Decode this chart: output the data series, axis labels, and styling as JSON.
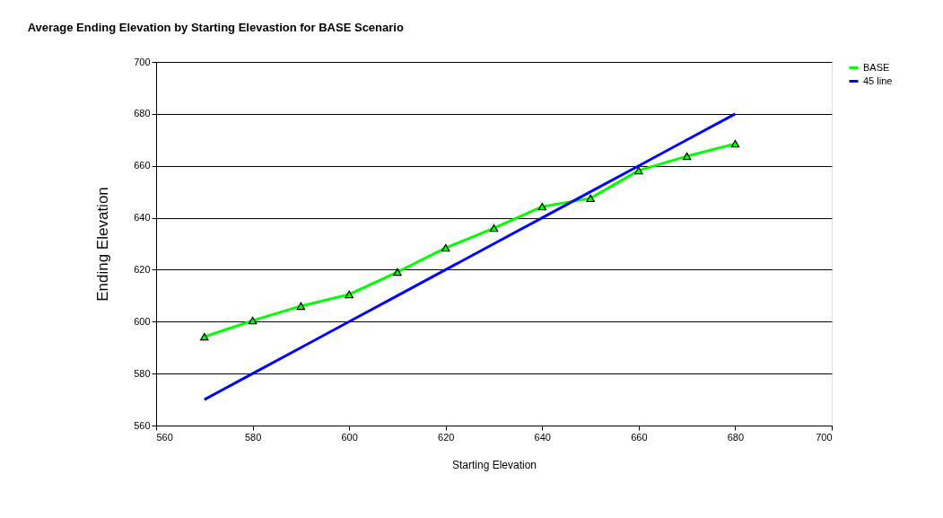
{
  "chart_data": {
    "type": "line",
    "title": "Average Ending Elevation by Starting Elevastion for BASE Scenario",
    "xlabel": "Starting Elevation",
    "ylabel": "Ending Elevation",
    "x": [
      570,
      580,
      590,
      600,
      610,
      620,
      630,
      640,
      650,
      660,
      670,
      680
    ],
    "series": [
      {
        "name": "BASE",
        "color": "#00ff00",
        "marker": "triangle",
        "values": [
          594.2,
          600.4,
          606,
          610.5,
          619.1,
          628.4,
          636,
          644.3,
          647.5,
          658.2,
          663.7,
          668.5
        ]
      },
      {
        "name": "45 line",
        "color": "#0000ff",
        "marker": "none",
        "values": [
          570,
          580,
          590,
          600,
          610,
          620,
          630,
          640,
          650,
          660,
          670,
          680
        ]
      }
    ],
    "xlim": [
      560,
      700
    ],
    "xticks": [
      560,
      580,
      600,
      620,
      640,
      660,
      680,
      700
    ],
    "ylim": [
      560,
      700
    ],
    "yticks": [
      560,
      580,
      600,
      620,
      640,
      660,
      680,
      700
    ],
    "grid": "y",
    "legend": "right"
  }
}
